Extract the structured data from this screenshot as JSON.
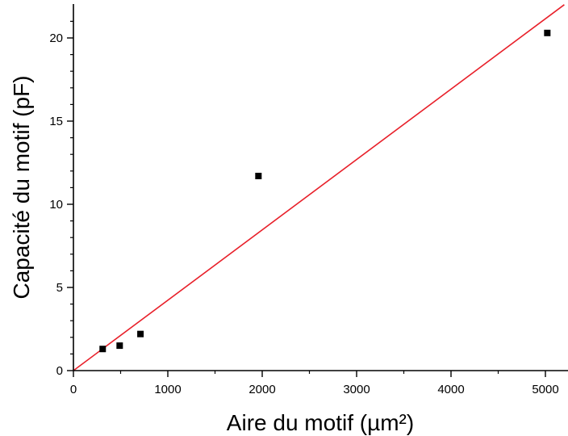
{
  "chart_data": {
    "type": "scatter",
    "xlabel": "Aire du motif (µm²)",
    "ylabel": "Capacité du motif (pF)",
    "xlim": [
      0,
      5200
    ],
    "ylim": [
      0,
      22
    ],
    "x_ticks": [
      0,
      1000,
      2000,
      3000,
      4000,
      5000
    ],
    "y_ticks": [
      0,
      5,
      10,
      15,
      20
    ],
    "x_minor_step": 500,
    "y_minor_step": 1,
    "grid": false,
    "legend": "none",
    "series": [
      {
        "type": "scatter",
        "marker": "square",
        "color": "#000000",
        "points": [
          {
            "x": 310,
            "y": 1.3
          },
          {
            "x": 490,
            "y": 1.5
          },
          {
            "x": 710,
            "y": 2.2
          },
          {
            "x": 1960,
            "y": 11.7
          },
          {
            "x": 5020,
            "y": 20.3
          }
        ]
      },
      {
        "type": "line",
        "color": "#e8202a",
        "points": [
          {
            "x": 0,
            "y": 0
          },
          {
            "x": 5200,
            "y": 22
          }
        ]
      }
    ]
  }
}
